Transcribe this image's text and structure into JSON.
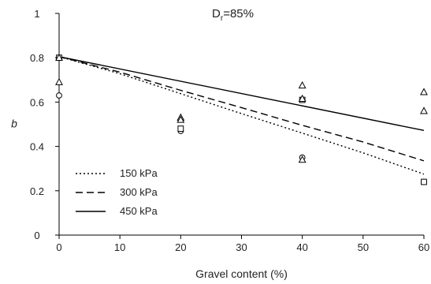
{
  "chart_data": {
    "type": "line",
    "xlabel": "Gravel content (%)",
    "ylabel": "b",
    "xlim": [
      0,
      60
    ],
    "ylim": [
      0,
      1
    ],
    "xticks": [
      0,
      10,
      20,
      30,
      40,
      50,
      60
    ],
    "yticks": [
      0,
      0.2,
      0.4,
      0.6,
      0.8,
      1
    ],
    "ytick_labels": [
      "0",
      "0.2",
      "0.4",
      "0.6",
      "0.8",
      "1"
    ],
    "grid": false,
    "legend_position": "bottom-left",
    "annotation": {
      "main": "D",
      "sub": "r",
      "suffix": "=85%"
    },
    "series": [
      {
        "name": "150 kPa",
        "line_style": "dotted",
        "x": [
          0,
          10,
          20,
          30,
          40,
          50,
          60
        ],
        "y": [
          0.805,
          0.728,
          0.638,
          0.548,
          0.46,
          0.371,
          0.275
        ]
      },
      {
        "name": "300 kPa",
        "line_style": "dashed",
        "x": [
          0,
          10,
          20,
          30,
          40,
          50,
          60
        ],
        "y": [
          0.805,
          0.735,
          0.653,
          0.575,
          0.495,
          0.42,
          0.335
        ]
      },
      {
        "name": "450 kPa",
        "line_style": "solid",
        "x": [
          0,
          60
        ],
        "y": [
          0.805,
          0.472
        ]
      }
    ],
    "points": [
      {
        "series": "150 kPa",
        "marker": "circle",
        "x": [
          0,
          20,
          40,
          60
        ],
        "y": [
          0.63,
          0.47,
          0.35,
          0.24
        ]
      },
      {
        "series": "300 kPa",
        "marker": "square",
        "x": [
          0,
          20,
          40,
          60
        ],
        "y": [
          0.8,
          0.48,
          0.61,
          0.24
        ]
      },
      {
        "series": "450 kPa",
        "marker": "triangle",
        "x": [
          0,
          0,
          20,
          20,
          40,
          40,
          40,
          60,
          60
        ],
        "y": [
          0.8,
          0.69,
          0.53,
          0.52,
          0.675,
          0.615,
          0.34,
          0.645,
          0.56
        ]
      }
    ],
    "colors": {
      "line": "#000000",
      "marker": "#000000"
    }
  }
}
